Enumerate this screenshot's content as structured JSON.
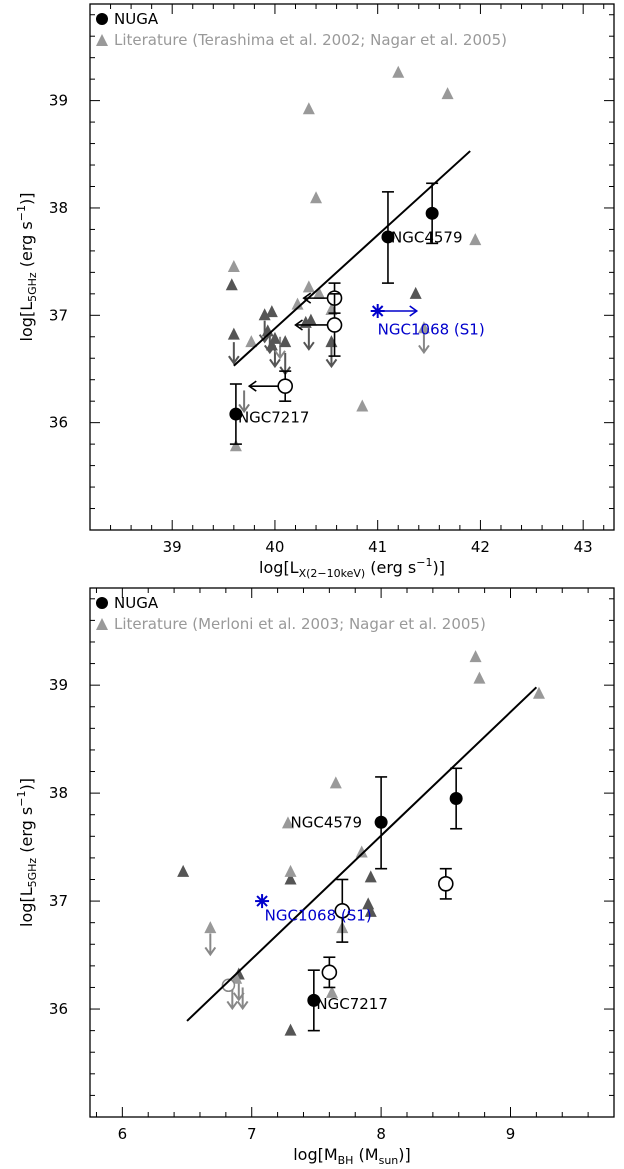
{
  "chart_data": [
    {
      "type": "scatter",
      "xlabel": {
        "main": "log[L",
        "sub": "X(2−10keV)",
        "unit_pre": " (erg s",
        "unit_sup": "−1",
        "unit_post": ")]"
      },
      "ylabel": {
        "main": "log[L",
        "sub": "5GHz",
        "unit_pre": " (erg s",
        "unit_sup": "−1",
        "unit_post": ")]"
      },
      "xlim": [
        38.2,
        43.3
      ],
      "ylim": [
        35.0,
        39.9
      ],
      "xticks": [
        39,
        40,
        41,
        42,
        43
      ],
      "yticks": [
        36,
        37,
        38,
        39
      ],
      "legend": [
        {
          "marker": "filled-circle",
          "color": "#000000",
          "text": "NUGA"
        },
        {
          "marker": "triangle",
          "color": "#999999",
          "text": "Literature (Terashima et al. 2002; Nagar et al. 2005)"
        }
      ],
      "fit_line": {
        "x": [
          39.6,
          41.9
        ],
        "y": [
          36.53,
          38.53
        ]
      },
      "nuga_filled": [
        {
          "x": 39.62,
          "y": 36.08,
          "yerr": [
            35.8,
            36.36
          ]
        },
        {
          "x": 41.1,
          "y": 37.73,
          "yerr": [
            37.3,
            38.15
          ]
        },
        {
          "x": 41.53,
          "y": 37.95,
          "yerr": [
            37.67,
            38.23
          ]
        }
      ],
      "nuga_open": [
        {
          "x": 40.1,
          "y": 36.34,
          "yerr": [
            36.2,
            36.48
          ],
          "xlimit": 39.75
        },
        {
          "x": 40.58,
          "y": 37.16,
          "yerr": [
            37.02,
            37.3
          ],
          "xlimit": 40.28
        },
        {
          "x": 40.58,
          "y": 36.91,
          "yerr": [
            36.62,
            37.2
          ],
          "xlimit": 40.2
        }
      ],
      "lit_light": [
        {
          "x": 39.6,
          "y": 37.45
        },
        {
          "x": 39.62,
          "y": 35.78
        },
        {
          "x": 39.77,
          "y": 36.75
        },
        {
          "x": 40.22,
          "y": 37.1
        },
        {
          "x": 40.33,
          "y": 37.26
        },
        {
          "x": 40.33,
          "y": 38.92
        },
        {
          "x": 40.4,
          "y": 38.09
        },
        {
          "x": 40.43,
          "y": 37.2
        },
        {
          "x": 40.55,
          "y": 37.05
        },
        {
          "x": 40.85,
          "y": 36.15
        },
        {
          "x": 41.2,
          "y": 39.26
        },
        {
          "x": 41.45,
          "y": 36.88
        },
        {
          "x": 41.68,
          "y": 39.06
        },
        {
          "x": 41.95,
          "y": 37.7
        }
      ],
      "lit_dark": [
        {
          "x": 39.58,
          "y": 37.28
        },
        {
          "x": 39.6,
          "y": 36.82
        },
        {
          "x": 39.9,
          "y": 37.0
        },
        {
          "x": 39.93,
          "y": 36.85
        },
        {
          "x": 39.97,
          "y": 37.03
        },
        {
          "x": 40.0,
          "y": 36.78
        },
        {
          "x": 40.1,
          "y": 36.75
        },
        {
          "x": 40.3,
          "y": 36.93
        },
        {
          "x": 40.35,
          "y": 36.95
        },
        {
          "x": 40.55,
          "y": 36.75
        },
        {
          "x": 41.37,
          "y": 37.2
        },
        {
          "x": 39.97,
          "y": 36.72
        }
      ],
      "upper_limits": [
        {
          "x": 39.6,
          "y": 36.75,
          "c": "#555555"
        },
        {
          "x": 39.9,
          "y": 36.95,
          "c": "#555555"
        },
        {
          "x": 39.95,
          "y": 36.85,
          "c": "#555555"
        },
        {
          "x": 40.0,
          "y": 36.72,
          "c": "#555555"
        },
        {
          "x": 40.1,
          "y": 36.65,
          "c": "#555555"
        },
        {
          "x": 39.7,
          "y": 36.3,
          "c": "#777777"
        },
        {
          "x": 40.33,
          "y": 36.88,
          "c": "#555555"
        },
        {
          "x": 40.55,
          "y": 36.72,
          "c": "#555555"
        },
        {
          "x": 41.45,
          "y": 36.85,
          "c": "#888888"
        },
        {
          "x": 40.05,
          "y": 36.8,
          "c": "#888888"
        }
      ],
      "seyfert": {
        "x": 41.0,
        "y": 37.04,
        "xlimit": 41.38
      },
      "labels": [
        {
          "text": "NGC4579",
          "x": 41.13,
          "y": 37.68,
          "color": "#000000"
        },
        {
          "text": "NGC1068 (S1)",
          "x": 41.0,
          "y": 36.82,
          "color": "#0000cc"
        },
        {
          "text": "NGC7217",
          "x": 39.64,
          "y": 36.0,
          "color": "#000000"
        }
      ]
    },
    {
      "type": "scatter",
      "xlabel": {
        "main": "log[M",
        "sub": "BH",
        "unit_pre": " (M",
        "unit_sub": "sun",
        "unit_post": ")]"
      },
      "ylabel": {
        "main": "log[L",
        "sub": "5GHz",
        "unit_pre": " (erg s",
        "unit_sup": "−1",
        "unit_post": ")]"
      },
      "xlim": [
        5.75,
        9.8
      ],
      "ylim": [
        35.0,
        39.9
      ],
      "xticks": [
        6,
        7,
        8,
        9
      ],
      "yticks": [
        36,
        37,
        38,
        39
      ],
      "legend": [
        {
          "marker": "filled-circle",
          "color": "#000000",
          "text": "NUGA"
        },
        {
          "marker": "triangle",
          "color": "#999999",
          "text": "Literature (Merloni et al. 2003; Nagar et al. 2005)"
        }
      ],
      "fit_line": {
        "x": [
          6.5,
          9.2
        ],
        "y": [
          35.89,
          38.98
        ]
      },
      "nuga_filled": [
        {
          "x": 7.48,
          "y": 36.08,
          "yerr": [
            35.8,
            36.36
          ]
        },
        {
          "x": 8.0,
          "y": 37.73,
          "yerr": [
            37.3,
            38.15
          ]
        },
        {
          "x": 8.58,
          "y": 37.95,
          "yerr": [
            37.67,
            38.23
          ]
        }
      ],
      "nuga_open": [
        {
          "x": 7.6,
          "y": 36.34,
          "yerr": [
            36.2,
            36.48
          ]
        },
        {
          "x": 8.5,
          "y": 37.16,
          "yerr": [
            37.02,
            37.3
          ]
        },
        {
          "x": 7.7,
          "y": 36.91,
          "yerr": [
            36.62,
            37.2
          ]
        }
      ],
      "lit_light": [
        {
          "x": 7.28,
          "y": 37.72
        },
        {
          "x": 7.3,
          "y": 37.27
        },
        {
          "x": 7.62,
          "y": 36.15
        },
        {
          "x": 7.65,
          "y": 38.09
        },
        {
          "x": 7.7,
          "y": 36.75
        },
        {
          "x": 7.85,
          "y": 37.45
        },
        {
          "x": 8.73,
          "y": 39.26
        },
        {
          "x": 8.76,
          "y": 39.06
        },
        {
          "x": 9.22,
          "y": 38.92
        },
        {
          "x": 6.88,
          "y": 36.28
        },
        {
          "x": 6.68,
          "y": 36.75
        }
      ],
      "lit_dark": [
        {
          "x": 6.47,
          "y": 37.27
        },
        {
          "x": 7.3,
          "y": 37.2
        },
        {
          "x": 7.3,
          "y": 35.8
        },
        {
          "x": 7.92,
          "y": 37.22
        },
        {
          "x": 7.9,
          "y": 36.97
        },
        {
          "x": 7.92,
          "y": 36.9
        },
        {
          "x": 6.9,
          "y": 36.32
        }
      ],
      "upper_limits": [
        {
          "x": 6.68,
          "y": 36.7,
          "c": "#888888"
        },
        {
          "x": 6.85,
          "y": 36.2,
          "c": "#888888"
        },
        {
          "x": 6.9,
          "y": 36.28,
          "c": "#888888"
        },
        {
          "x": 6.93,
          "y": 36.2,
          "c": "#888888"
        }
      ],
      "open_grey": [
        {
          "x": 6.82,
          "y": 36.22
        }
      ],
      "seyfert": {
        "x": 7.08,
        "y": 37.0
      },
      "labels": [
        {
          "text": "NGC4579",
          "x": 7.3,
          "y": 37.68,
          "color": "#000000"
        },
        {
          "text": "NGC1068 (S1)",
          "x": 7.1,
          "y": 36.82,
          "color": "#0000cc"
        },
        {
          "text": "NGC7217",
          "x": 7.5,
          "y": 36.0,
          "color": "#000000"
        }
      ]
    }
  ]
}
